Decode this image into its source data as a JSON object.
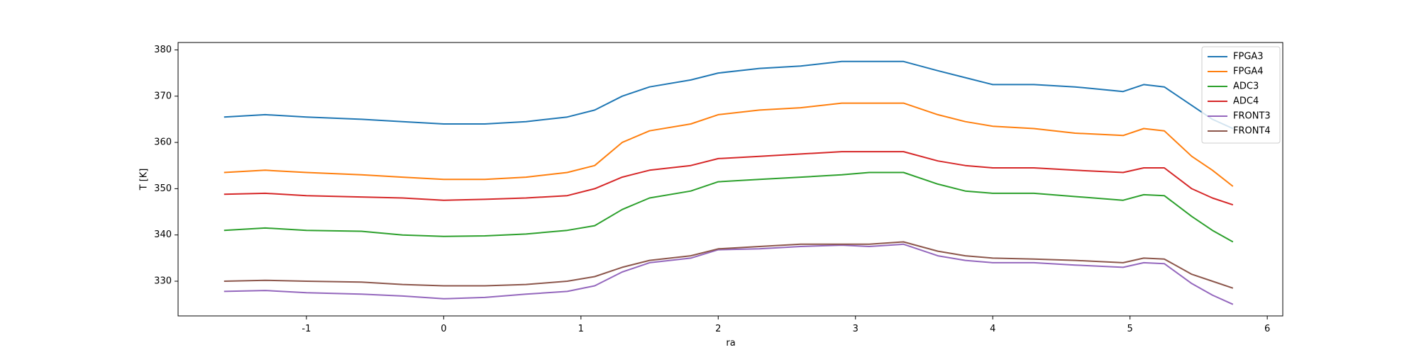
{
  "chart_data": {
    "type": "line",
    "xlabel": "ra",
    "ylabel": "T [K]",
    "x": [
      -1.6,
      -1.3,
      -1.0,
      -0.6,
      -0.3,
      0,
      0.3,
      0.6,
      0.9,
      1.1,
      1.3,
      1.5,
      1.8,
      2.0,
      2.3,
      2.6,
      2.9,
      3.1,
      3.35,
      3.6,
      3.8,
      4.0,
      4.3,
      4.6,
      4.95,
      5.1,
      5.25,
      5.45,
      5.6,
      5.75
    ],
    "series": [
      {
        "name": "FPGA3",
        "color": "#1f77b4",
        "values": [
          365.5,
          366,
          365.5,
          365,
          364.5,
          364,
          364,
          364.5,
          365.5,
          367,
          370,
          372,
          373.5,
          375,
          376,
          376.5,
          377.5,
          377.5,
          377.5,
          375.5,
          374,
          372.5,
          372.5,
          372,
          371,
          372.5,
          372,
          368,
          365,
          363
        ]
      },
      {
        "name": "FPGA4",
        "color": "#ff7f0e",
        "values": [
          353.5,
          354,
          353.5,
          353,
          352.5,
          352,
          352,
          352.5,
          353.5,
          355,
          360,
          362.5,
          364,
          366,
          367,
          367.5,
          368.5,
          368.5,
          368.5,
          366,
          364.5,
          363.5,
          363,
          362,
          361.5,
          363,
          362.5,
          357,
          354,
          350.5
        ]
      },
      {
        "name": "ADC3",
        "color": "#2ca02c",
        "values": [
          341,
          341.5,
          341,
          340.8,
          340,
          339.7,
          339.8,
          340.2,
          341,
          342,
          345.5,
          348,
          349.5,
          351.5,
          352,
          352.5,
          353,
          353.5,
          353.5,
          351,
          349.5,
          349,
          349,
          348.3,
          347.5,
          348.7,
          348.5,
          344,
          341,
          338.5
        ]
      },
      {
        "name": "ADC4",
        "color": "#d62728",
        "values": [
          348.8,
          349,
          348.5,
          348.2,
          348,
          347.5,
          347.7,
          348,
          348.5,
          350,
          352.5,
          354,
          355,
          356.5,
          357,
          357.5,
          358,
          358,
          358,
          356,
          355,
          354.5,
          354.5,
          354,
          353.5,
          354.5,
          354.5,
          350,
          348,
          346.5
        ]
      },
      {
        "name": "FRONT3",
        "color": "#9467bd",
        "values": [
          327.8,
          328,
          327.5,
          327.2,
          326.8,
          326.2,
          326.5,
          327.2,
          327.8,
          329,
          332,
          334,
          335,
          336.8,
          337,
          337.5,
          337.8,
          337.5,
          338,
          335.5,
          334.5,
          334,
          334,
          333.5,
          333,
          334,
          333.8,
          329.5,
          327,
          325
        ]
      },
      {
        "name": "FRONT4",
        "color": "#8c564b",
        "values": [
          330,
          330.2,
          330,
          329.8,
          329.3,
          329,
          329,
          329.3,
          330,
          331,
          333,
          334.5,
          335.5,
          337,
          337.5,
          338,
          338,
          338,
          338.5,
          336.5,
          335.5,
          335,
          334.8,
          334.5,
          334,
          335,
          334.8,
          331.5,
          330,
          328.5
        ]
      }
    ],
    "xlim": [
      -1.935,
      6.113
    ],
    "xticks": [
      -1,
      0,
      1,
      2,
      3,
      4,
      5,
      6
    ],
    "ylim": [
      322.5,
      381.6
    ],
    "yticks": [
      330,
      340,
      350,
      360,
      370,
      380
    ],
    "legend": "upper right"
  }
}
